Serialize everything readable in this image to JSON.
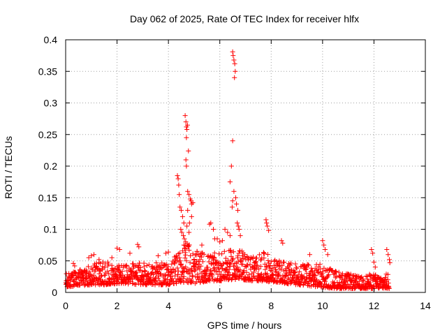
{
  "chart_data": {
    "type": "scatter",
    "title": "Day 062 of 2025, Rate Of TEC Index for receiver hlfx",
    "xlabel": "GPS time / hours",
    "ylabel": "ROTI / TECUs",
    "xlim": [
      0,
      14
    ],
    "ylim": [
      0,
      0.4
    ],
    "x_ticks": [
      0,
      2,
      4,
      6,
      8,
      10,
      12,
      14
    ],
    "x_tick_labels": [
      "0",
      "2",
      "4",
      "6",
      "8",
      "10",
      "12",
      "14"
    ],
    "y_ticks": [
      0,
      0.05,
      0.1,
      0.15,
      0.2,
      0.25,
      0.3,
      0.35,
      0.4
    ],
    "y_tick_labels": [
      "0",
      "0.05",
      "0.1",
      "0.15",
      "0.2",
      "0.25",
      "0.3",
      "0.35",
      "0.4"
    ],
    "grid": true,
    "marker": "+",
    "marker_color": "#ff0000",
    "series": [
      {
        "name": "ROTI",
        "envelope_x": [
          0.0,
          0.5,
          1.0,
          1.5,
          2.0,
          2.5,
          3.0,
          3.5,
          4.0,
          4.3,
          4.5,
          4.7,
          4.9,
          5.0,
          5.3,
          5.6,
          6.0,
          6.3,
          6.5,
          6.7,
          6.9,
          7.2,
          7.5,
          7.8,
          8.0,
          8.3,
          8.5,
          9.0,
          9.5,
          10.0,
          10.5,
          11.0,
          11.5,
          11.9,
          12.2,
          12.6
        ],
        "envelope_low": [
          0.008,
          0.01,
          0.012,
          0.012,
          0.014,
          0.013,
          0.012,
          0.012,
          0.012,
          0.014,
          0.016,
          0.016,
          0.015,
          0.014,
          0.016,
          0.018,
          0.018,
          0.02,
          0.02,
          0.02,
          0.02,
          0.018,
          0.018,
          0.018,
          0.016,
          0.016,
          0.014,
          0.012,
          0.01,
          0.008,
          0.006,
          0.006,
          0.006,
          0.006,
          0.006,
          0.006
        ],
        "envelope_high": [
          0.03,
          0.035,
          0.045,
          0.05,
          0.045,
          0.045,
          0.048,
          0.048,
          0.045,
          0.06,
          0.075,
          0.085,
          0.07,
          0.065,
          0.065,
          0.06,
          0.065,
          0.065,
          0.07,
          0.07,
          0.065,
          0.06,
          0.06,
          0.065,
          0.055,
          0.05,
          0.05,
          0.045,
          0.045,
          0.045,
          0.035,
          0.03,
          0.025,
          0.03,
          0.028,
          0.03
        ],
        "outliers": [
          [
            0.3,
            0.046
          ],
          [
            0.35,
            0.042
          ],
          [
            0.9,
            0.055
          ],
          [
            1.0,
            0.058
          ],
          [
            1.1,
            0.06
          ],
          [
            1.3,
            0.052
          ],
          [
            1.8,
            0.055
          ],
          [
            2.0,
            0.07
          ],
          [
            2.1,
            0.068
          ],
          [
            2.5,
            0.062
          ],
          [
            2.8,
            0.076
          ],
          [
            2.85,
            0.072
          ],
          [
            3.6,
            0.058
          ],
          [
            3.9,
            0.062
          ],
          [
            4.0,
            0.064
          ],
          [
            4.35,
            0.185
          ],
          [
            4.38,
            0.18
          ],
          [
            4.4,
            0.17
          ],
          [
            4.42,
            0.155
          ],
          [
            4.45,
            0.135
          ],
          [
            4.5,
            0.13
          ],
          [
            4.55,
            0.12
          ],
          [
            4.6,
            0.11
          ],
          [
            4.48,
            0.1
          ],
          [
            4.52,
            0.095
          ],
          [
            4.58,
            0.09
          ],
          [
            4.62,
            0.085
          ],
          [
            4.67,
            0.08
          ],
          [
            4.6,
            0.075
          ],
          [
            4.65,
            0.28
          ],
          [
            4.68,
            0.27
          ],
          [
            4.7,
            0.262
          ],
          [
            4.72,
            0.258
          ],
          [
            4.74,
            0.265
          ],
          [
            4.7,
            0.245
          ],
          [
            4.78,
            0.224
          ],
          [
            4.68,
            0.21
          ],
          [
            4.7,
            0.2
          ],
          [
            4.75,
            0.16
          ],
          [
            4.8,
            0.155
          ],
          [
            4.85,
            0.148
          ],
          [
            4.88,
            0.145
          ],
          [
            4.9,
            0.14
          ],
          [
            4.95,
            0.142
          ],
          [
            4.9,
            0.12
          ],
          [
            4.75,
            0.13
          ],
          [
            4.82,
            0.11
          ],
          [
            4.72,
            0.105
          ],
          [
            4.8,
            0.095
          ],
          [
            5.3,
            0.075
          ],
          [
            5.6,
            0.108
          ],
          [
            5.65,
            0.11
          ],
          [
            5.75,
            0.1
          ],
          [
            5.8,
            0.085
          ],
          [
            5.9,
            0.085
          ],
          [
            6.0,
            0.08
          ],
          [
            6.1,
            0.082
          ],
          [
            6.2,
            0.1
          ],
          [
            6.3,
            0.095
          ],
          [
            6.4,
            0.09
          ],
          [
            6.5,
            0.24
          ],
          [
            6.45,
            0.2
          ],
          [
            6.4,
            0.175
          ],
          [
            6.55,
            0.16
          ],
          [
            6.5,
            0.145
          ],
          [
            6.48,
            0.135
          ],
          [
            6.5,
            0.381
          ],
          [
            6.52,
            0.375
          ],
          [
            6.55,
            0.368
          ],
          [
            6.58,
            0.362
          ],
          [
            6.6,
            0.35
          ],
          [
            6.57,
            0.34
          ],
          [
            6.62,
            0.15
          ],
          [
            6.65,
            0.14
          ],
          [
            6.7,
            0.13
          ],
          [
            6.68,
            0.11
          ],
          [
            6.72,
            0.105
          ],
          [
            6.75,
            0.1
          ],
          [
            6.8,
            0.09
          ],
          [
            7.8,
            0.115
          ],
          [
            7.82,
            0.11
          ],
          [
            7.85,
            0.105
          ],
          [
            7.9,
            0.098
          ],
          [
            8.4,
            0.082
          ],
          [
            8.45,
            0.078
          ],
          [
            9.5,
            0.06
          ],
          [
            10.0,
            0.082
          ],
          [
            10.05,
            0.075
          ],
          [
            10.1,
            0.068
          ],
          [
            10.2,
            0.06
          ],
          [
            11.9,
            0.068
          ],
          [
            11.95,
            0.062
          ],
          [
            12.0,
            0.048
          ],
          [
            12.05,
            0.04
          ],
          [
            12.5,
            0.068
          ],
          [
            12.55,
            0.06
          ],
          [
            12.6,
            0.052
          ],
          [
            12.62,
            0.047
          ]
        ]
      }
    ]
  }
}
